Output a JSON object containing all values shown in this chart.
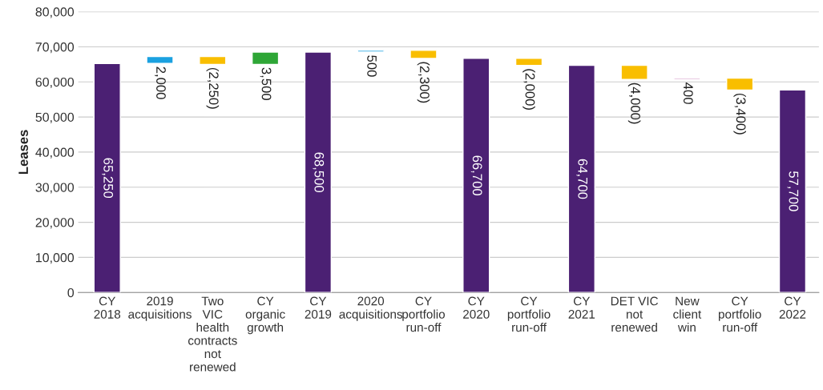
{
  "chart_data": {
    "type": "bar",
    "ylabel": "Leases",
    "categories": [
      "CY\n2018",
      "2019\nacquisitions",
      "Two\nVIC\nhealth\ncontracts\nnot\nrenewed",
      "CY\norganic\ngrowth",
      "CY\n2019",
      "2020\nacquisitions",
      "CY\nportfolio\nrun-off",
      "CY\n2020",
      "CY\nportfolio\nrun-off",
      "CY\n2021",
      "DET VIC\nnot\nrenewed",
      "New\nclient\nwin",
      "CY\nportfolio\nrun-off",
      "CY\n2022"
    ],
    "values": [
      65250,
      2000,
      -2250,
      3500,
      68500,
      500,
      -2300,
      66700,
      -2000,
      64700,
      -4000,
      400,
      -3400,
      57700
    ],
    "base": [
      0,
      65250,
      67250,
      65000,
      0,
      68500,
      69000,
      0,
      66700,
      0,
      64700,
      60700,
      61100,
      0
    ],
    "colors": [
      "#4b2073",
      "#1ba1e0",
      "#f9be00",
      "#2ea636",
      "#4b2073",
      "#1ba1e0",
      "#f9be00",
      "#4b2073",
      "#f9be00",
      "#4b2073",
      "#f9be00",
      "#a3208a",
      "#f9be00",
      "#4b2073"
    ],
    "value_labels": [
      "65,250",
      "2,000",
      "(2,250)",
      "3,500",
      "68,500",
      "500",
      "(2,300)",
      "66,700",
      "(2,000)",
      "64,700",
      "(4,000)",
      "400",
      "(3,400)",
      "57,700"
    ],
    "ylim": [
      0,
      80000
    ],
    "yticks": [
      0,
      {
        "value": 10000,
        "label": "10,000"
      },
      {
        "value": 20000,
        "label": "20,000"
      },
      {
        "value": 30000,
        "label": "30,000"
      },
      {
        "value": 40000,
        "label": "40,000"
      },
      {
        "value": 50000,
        "label": "50,000"
      },
      {
        "value": 60000,
        "label": "60,000"
      },
      {
        "value": 70000,
        "label": "70,000"
      },
      {
        "value": 80000,
        "label": "80,000"
      }
    ],
    "grid": "y",
    "legend": false
  }
}
